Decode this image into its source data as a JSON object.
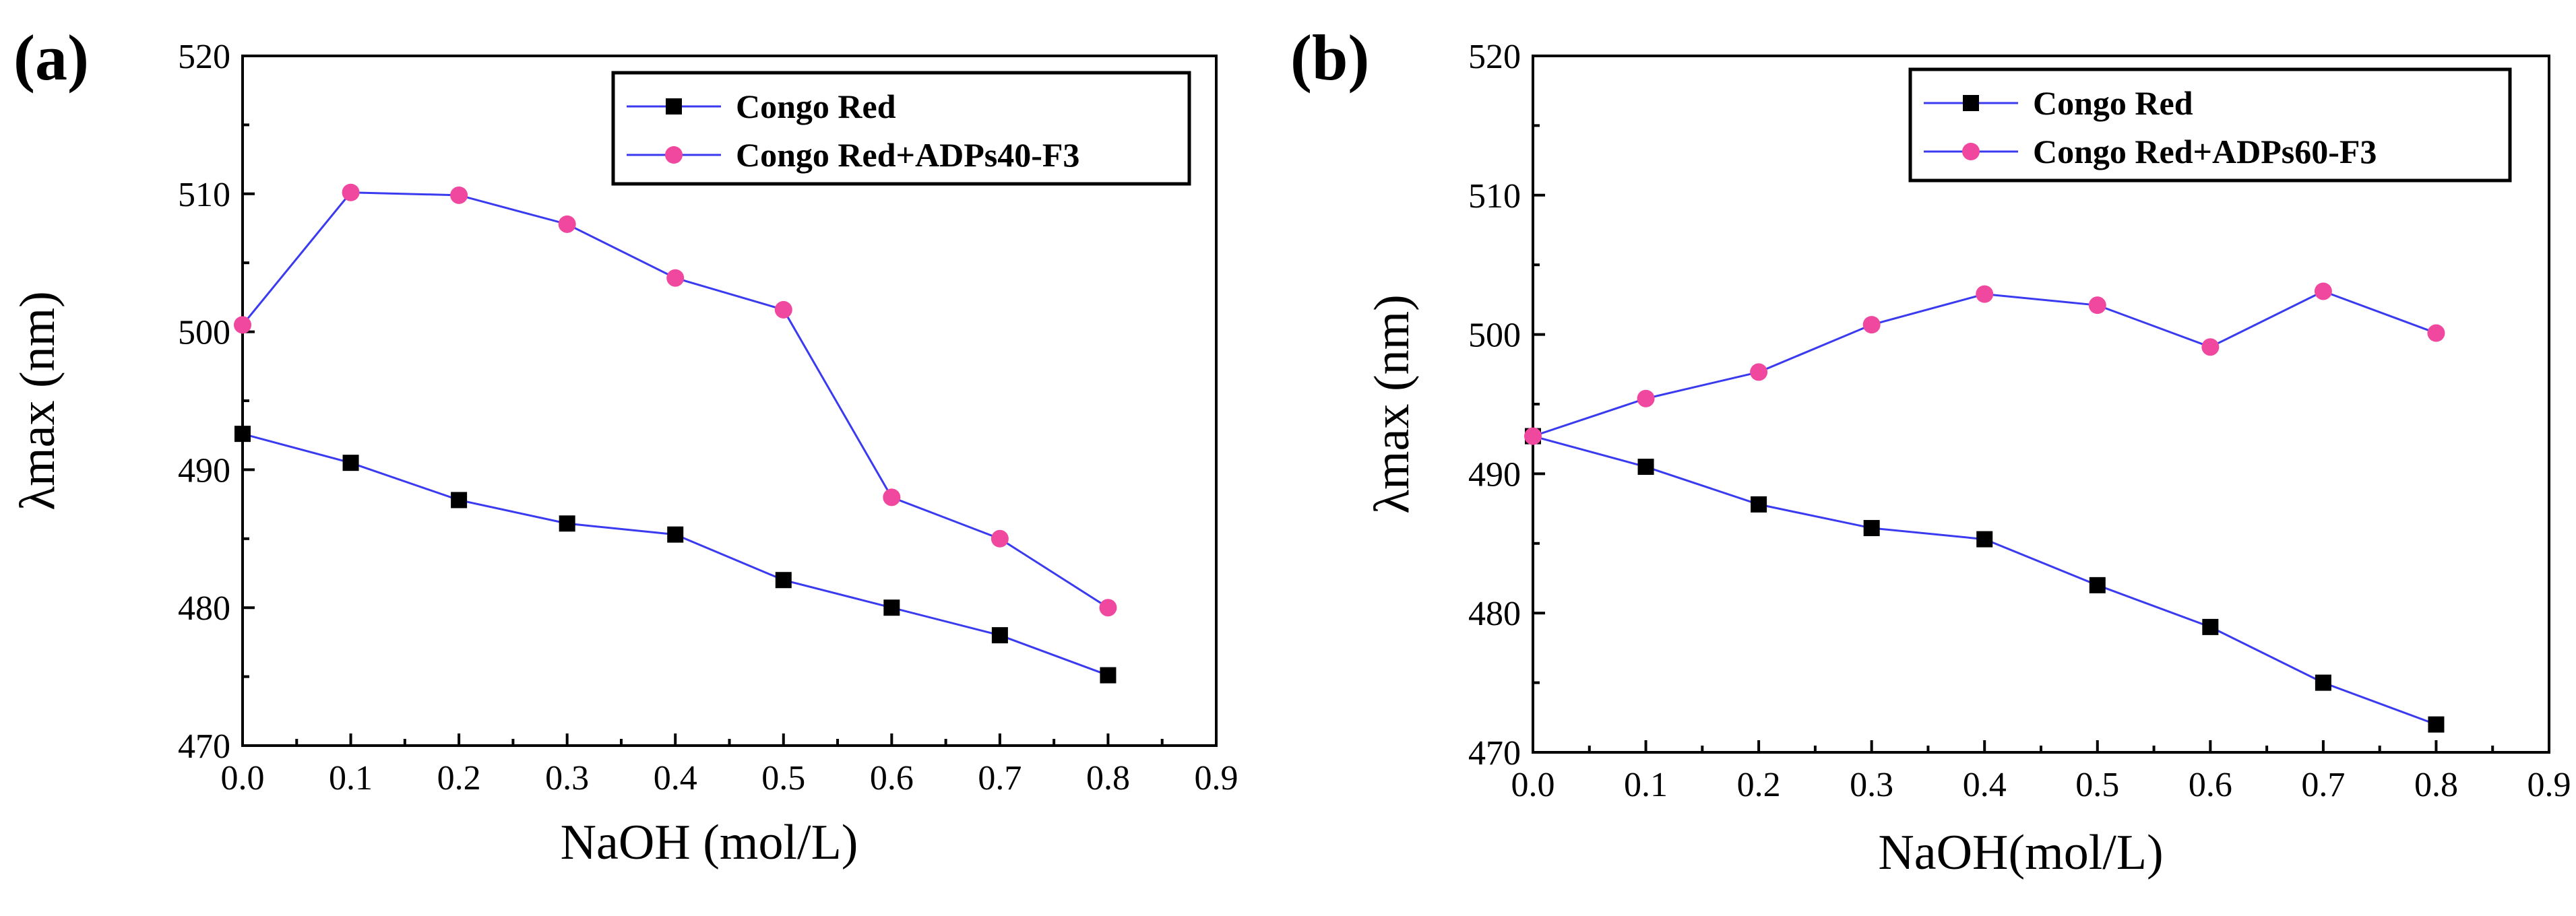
{
  "chart_data": [
    {
      "type": "line",
      "panel_label": "(a)",
      "xlabel": "NaOH (mol/L)",
      "ylabel": "λmax (nm)",
      "xlim": [
        0.0,
        0.9
      ],
      "ylim": [
        470,
        520
      ],
      "x_ticks": [
        "0.0",
        "0.1",
        "0.2",
        "0.3",
        "0.4",
        "0.5",
        "0.6",
        "0.7",
        "0.8",
        "0.9"
      ],
      "y_ticks": [
        "470",
        "480",
        "490",
        "500",
        "510",
        "520"
      ],
      "x": [
        0.0,
        0.1,
        0.2,
        0.3,
        0.4,
        0.5,
        0.6,
        0.7,
        0.8
      ],
      "legend_position": "top-right",
      "series": [
        {
          "name": "Congo Red",
          "marker": "square",
          "line_color": "#3a3af0",
          "marker_color": "#000000",
          "values": [
            492.6,
            490.5,
            487.8,
            486.1,
            485.3,
            482.0,
            480.0,
            478.0,
            475.1
          ]
        },
        {
          "name": "Congo Red+ADPs40-F3",
          "marker": "circle",
          "line_color": "#3a3af0",
          "marker_color": "#f0479f",
          "values": [
            500.5,
            510.1,
            509.9,
            507.8,
            503.9,
            501.6,
            488.0,
            485.0,
            480.0
          ]
        }
      ]
    },
    {
      "type": "line",
      "panel_label": "(b)",
      "xlabel": "NaOH(mol/L)",
      "ylabel": "λmax (nm)",
      "xlim": [
        0.0,
        0.9
      ],
      "ylim": [
        470,
        520
      ],
      "x_ticks": [
        "0.0",
        "0.1",
        "0.2",
        "0.3",
        "0.4",
        "0.5",
        "0.6",
        "0.7",
        "0.8",
        "0.9"
      ],
      "y_ticks": [
        "470",
        "480",
        "490",
        "500",
        "510",
        "520"
      ],
      "x": [
        0.0,
        0.1,
        0.2,
        0.3,
        0.4,
        0.5,
        0.6,
        0.7,
        0.8
      ],
      "legend_position": "top-right",
      "series": [
        {
          "name": "Congo Red",
          "marker": "square",
          "line_color": "#3a3af0",
          "marker_color": "#000000",
          "values": [
            492.7,
            490.5,
            487.8,
            486.1,
            485.3,
            482.0,
            479.0,
            475.0,
            472.0
          ]
        },
        {
          "name": "Congo Red+ADPs60-F3",
          "marker": "circle",
          "line_color": "#3a3af0",
          "marker_color": "#f0479f",
          "values": [
            492.7,
            495.4,
            497.3,
            500.7,
            502.9,
            502.1,
            499.1,
            503.1,
            500.1
          ]
        }
      ]
    }
  ]
}
